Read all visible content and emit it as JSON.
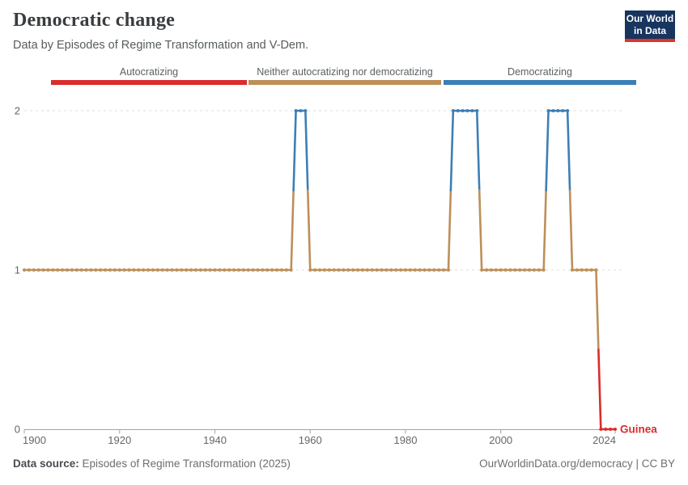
{
  "header": {
    "title": "Democratic change",
    "subtitle": "Data by Episodes of Regime Transformation and V-Dem."
  },
  "logo": {
    "line1": "Our World",
    "line2": "in Data",
    "bg_color": "#17355e",
    "accent_color": "#dc352c"
  },
  "legend": {
    "items": [
      {
        "label": "Autocratizing",
        "color": "#d92c2c"
      },
      {
        "label": "Neither autocratizing nor democratizing",
        "color": "#bd8f5a"
      },
      {
        "label": "Democratizing",
        "color": "#3c7fb6"
      }
    ]
  },
  "chart_data": {
    "type": "line",
    "title": "Democratic change",
    "entity_label": "Guinea",
    "entity_label_color": "#d92c2c",
    "value_categories": {
      "0": "Autocratizing",
      "1": "Neither autocratizing nor democratizing",
      "2": "Democratizing"
    },
    "value_colors": {
      "0": "#d92c2c",
      "1": "#bd8f5a",
      "2": "#3c7fb6"
    },
    "segments": [
      {
        "start": 1900,
        "end": 1956,
        "value": 1
      },
      {
        "start": 1957,
        "end": 1959,
        "value": 2
      },
      {
        "start": 1960,
        "end": 1989,
        "value": 1
      },
      {
        "start": 1990,
        "end": 1995,
        "value": 2
      },
      {
        "start": 1996,
        "end": 2009,
        "value": 1
      },
      {
        "start": 2010,
        "end": 2014,
        "value": 2
      },
      {
        "start": 2015,
        "end": 2020,
        "value": 1
      },
      {
        "start": 2021,
        "end": 2024,
        "value": 0
      }
    ],
    "x_ticks": [
      1900,
      1920,
      1940,
      1960,
      1980,
      2000,
      2024
    ],
    "y_ticks": [
      0,
      1,
      2
    ],
    "xlim": [
      1900,
      2024
    ],
    "ylim": [
      0,
      2
    ],
    "grid": "dashed horizontal gridlines at y=1 and y=2, solid x axis at y=0",
    "legend_position": "top"
  },
  "footer": {
    "source_label": "Data source:",
    "source_value": " Episodes of Regime Transformation (2025)",
    "right_text": "OurWorldinData.org/democracy | CC BY"
  }
}
